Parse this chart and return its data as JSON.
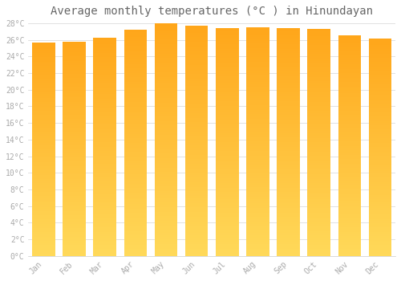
{
  "months": [
    "Jan",
    "Feb",
    "Mar",
    "Apr",
    "May",
    "Jun",
    "Jul",
    "Aug",
    "Sep",
    "Oct",
    "Nov",
    "Dec"
  ],
  "values": [
    25.7,
    25.8,
    26.3,
    27.2,
    28.0,
    27.7,
    27.4,
    27.5,
    27.4,
    27.3,
    26.5,
    26.2
  ],
  "bar_color_top": "#FFA500",
  "bar_color_bottom": "#FFD070",
  "background_color": "#FFFFFF",
  "plot_bg_color": "#FFFFFF",
  "title": "Average monthly temperatures (°C ) in Hinundayan",
  "title_fontsize": 10,
  "ylim_max": 28,
  "ytick_step": 2,
  "grid_color": "#DDDDDD",
  "tick_label_color": "#AAAAAA",
  "title_color": "#666666",
  "bar_width": 0.75
}
